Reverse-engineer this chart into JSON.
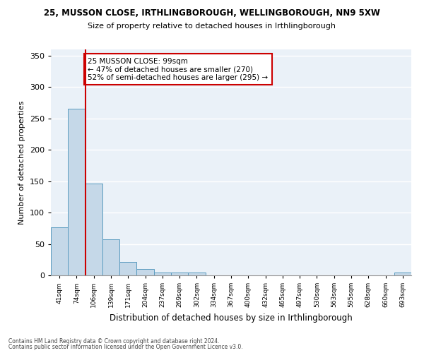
{
  "title": "25, MUSSON CLOSE, IRTHLINGBOROUGH, WELLINGBOROUGH, NN9 5XW",
  "subtitle": "Size of property relative to detached houses in Irthlingborough",
  "xlabel": "Distribution of detached houses by size in Irthlingborough",
  "ylabel": "Number of detached properties",
  "bar_labels": [
    "41sqm",
    "74sqm",
    "106sqm",
    "139sqm",
    "171sqm",
    "204sqm",
    "237sqm",
    "269sqm",
    "302sqm",
    "334sqm",
    "367sqm",
    "400sqm",
    "432sqm",
    "465sqm",
    "497sqm",
    "530sqm",
    "563sqm",
    "595sqm",
    "628sqm",
    "660sqm",
    "693sqm"
  ],
  "bar_values": [
    76,
    265,
    146,
    57,
    21,
    10,
    4,
    4,
    4,
    0,
    0,
    0,
    0,
    0,
    0,
    0,
    0,
    0,
    0,
    0,
    4
  ],
  "bar_color": "#c5d8e8",
  "bar_edge_color": "#5a9bbf",
  "red_line_index": 2,
  "annotation_text": "25 MUSSON CLOSE: 99sqm\n← 47% of detached houses are smaller (270)\n52% of semi-detached houses are larger (295) →",
  "annotation_box_color": "#ffffff",
  "annotation_box_edge_color": "#cc0000",
  "red_line_color": "#cc0000",
  "ylim": [
    0,
    360
  ],
  "yticks": [
    0,
    50,
    100,
    150,
    200,
    250,
    300,
    350
  ],
  "background_color": "#eaf1f8",
  "grid_color": "#ffffff",
  "footer_line1": "Contains HM Land Registry data © Crown copyright and database right 2024.",
  "footer_line2": "Contains public sector information licensed under the Open Government Licence v3.0."
}
